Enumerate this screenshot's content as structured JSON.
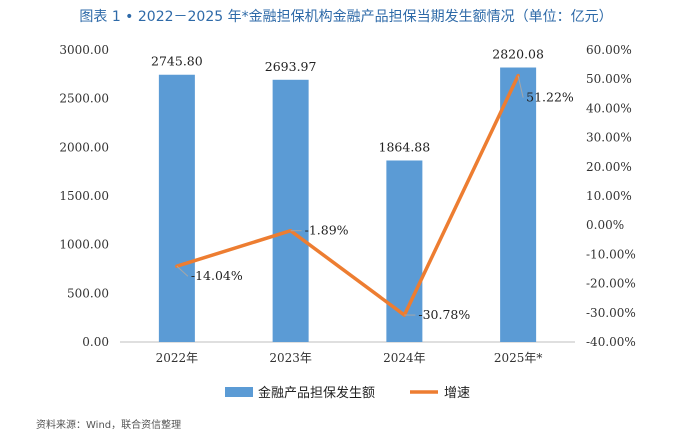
{
  "chart_data": {
    "type": "bar",
    "title": "图表 1 • 2022－2025 年*金融担保机构金融产品担保当期发生额情况（单位：亿元）",
    "categories": [
      "2022年",
      "2023年",
      "2024年",
      "2025年*"
    ],
    "series": [
      {
        "name": "金融产品担保发生额",
        "type": "bar",
        "axis": "left",
        "color": "#5b9bd5",
        "values": [
          2745.8,
          2693.97,
          1864.88,
          2820.08
        ],
        "value_labels": [
          "2745.80",
          "2693.97",
          "1864.88",
          "2820.08"
        ]
      },
      {
        "name": "增速",
        "type": "line",
        "axis": "right",
        "color": "#ed7d31",
        "values": [
          -14.04,
          -1.89,
          -30.78,
          51.22
        ],
        "value_labels": [
          "-14.04%",
          "-1.89%",
          "-30.78%",
          "51.22%"
        ]
      }
    ],
    "y_left": {
      "range": [
        0,
        3000
      ],
      "ticks": [
        0,
        500,
        1000,
        1500,
        2000,
        2500,
        3000
      ],
      "tick_labels": [
        "0.00",
        "500.00",
        "1000.00",
        "1500.00",
        "2000.00",
        "2500.00",
        "3000.00"
      ]
    },
    "y_right": {
      "range": [
        -40,
        60
      ],
      "ticks": [
        -40,
        -30,
        -20,
        -10,
        0,
        10,
        20,
        30,
        40,
        50,
        60
      ],
      "tick_labels": [
        "-40.00%",
        "-30.00%",
        "-20.00%",
        "-10.00%",
        "0.00%",
        "10.00%",
        "20.00%",
        "30.00%",
        "40.00%",
        "50.00%",
        "60.00%"
      ]
    },
    "grid": false,
    "legend_position": "bottom"
  },
  "source_note": "资料来源：Wind，联合资信整理"
}
